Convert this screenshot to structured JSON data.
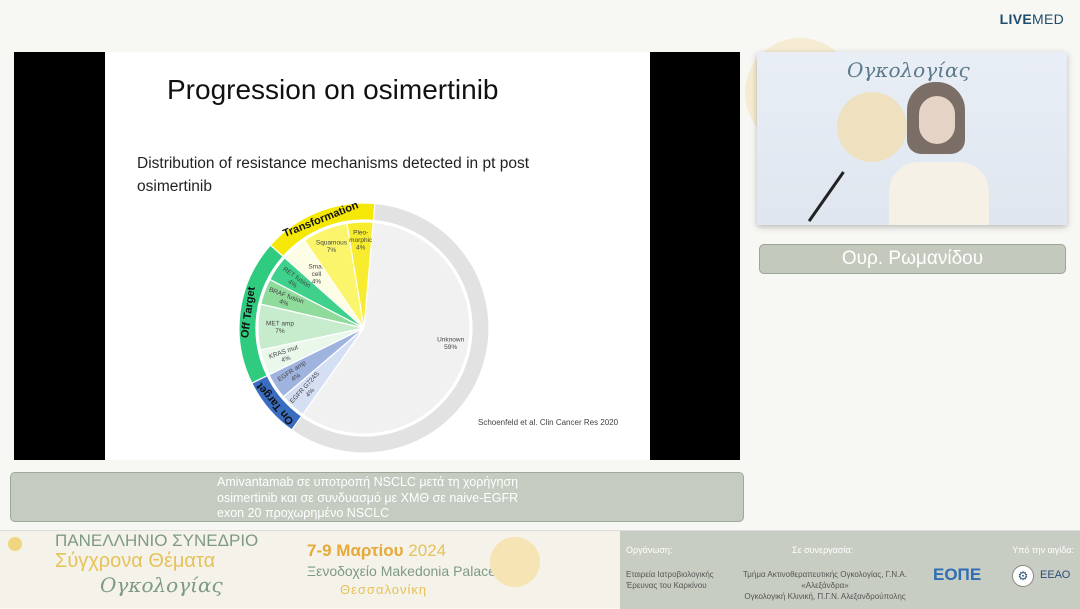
{
  "header": {
    "brand_bold": "LIVE",
    "brand_light": "MED"
  },
  "slide": {
    "title": "Progression on osimertinib",
    "subtitle": "Distribution of resistance mechanisms detected in pt post osimertinib",
    "citation": "Schoenfeld et al. Clin Cancer Res 2020"
  },
  "chart_data": {
    "type": "pie",
    "subtype": "sunburst",
    "groups": [
      {
        "name": "",
        "color": "#e2e2e2",
        "items": [
          {
            "label": "Unknown",
            "value": 59,
            "color": "#f1f1f1"
          }
        ]
      },
      {
        "name": "On Target",
        "color": "#3a6cbf",
        "items": [
          {
            "label": "EGFR G724S",
            "value": 4,
            "color": "#d5dff4"
          },
          {
            "label": "EGFR amp",
            "value": 4,
            "color": "#9fb3df"
          }
        ]
      },
      {
        "name": "Off Target",
        "color": "#2fcb7f",
        "items": [
          {
            "label": "KRAS mut",
            "value": 4,
            "color": "#eaf8ec"
          },
          {
            "label": "MET amp",
            "value": 7,
            "color": "#c6eccd"
          },
          {
            "label": "BRAF fusion",
            "value": 4,
            "color": "#8edb9c"
          },
          {
            "label": "RET fusion",
            "value": 4,
            "color": "#3fd08b"
          }
        ]
      },
      {
        "name": "Transformation",
        "color": "#f6e806",
        "items": [
          {
            "label": "Small cell",
            "value": 4,
            "color": "#fdfde6"
          },
          {
            "label": "Squamous",
            "value": 7,
            "color": "#fbf56c"
          },
          {
            "label": "Pleo-morphic",
            "value": 4,
            "color": "#f7ec2e"
          }
        ]
      }
    ],
    "unit": "%"
  },
  "camera": {
    "backdrop_text": "Ογκολογίας"
  },
  "speaker": {
    "name": "Ουρ. Ρωμανίδου"
  },
  "caption": {
    "lines": [
      "Amivantamab σε υποτροπή NSCLC μετά τη χορήγηση",
      "osimertinib και σε συνδυασμό με ΧΜΘ σε naive-EGFR",
      "exon 20 προχωρημένο NSCLC"
    ]
  },
  "banner": {
    "title1": "ΠΑΝΕΛΛΗΝΙΟ ΣΥΝΕΔΡΙΟ",
    "title2": "Σύγχρονα Θέματα",
    "title3": "Ογκολογίας",
    "dates": "7-9 Μαρτίου",
    "year": "2024",
    "venue": "Ξενοδοχείο Makedonia Palace",
    "city": "Θεσσαλονίκη",
    "org_heading": "Οργάνωση:",
    "org_text": [
      "Εταιρεία Ιατροβιολογικής",
      "Έρευνας του Καρκίνου"
    ],
    "collab_heading": "Σε συνεργασία:",
    "collab_text": [
      "Τμήμα Ακτινοθεραπευτικής Ογκολογίας, Γ.Ν.Α. «Αλεξάνδρα»",
      "Ογκολογική Κλινική, Π.Γ.Ν. Αλεξανδρούπολης"
    ],
    "aegis_heading": "Υπό την αιγίδα:",
    "logo1": "ΕΟΠΕ",
    "logo2": "ΕΕΑΟ"
  }
}
